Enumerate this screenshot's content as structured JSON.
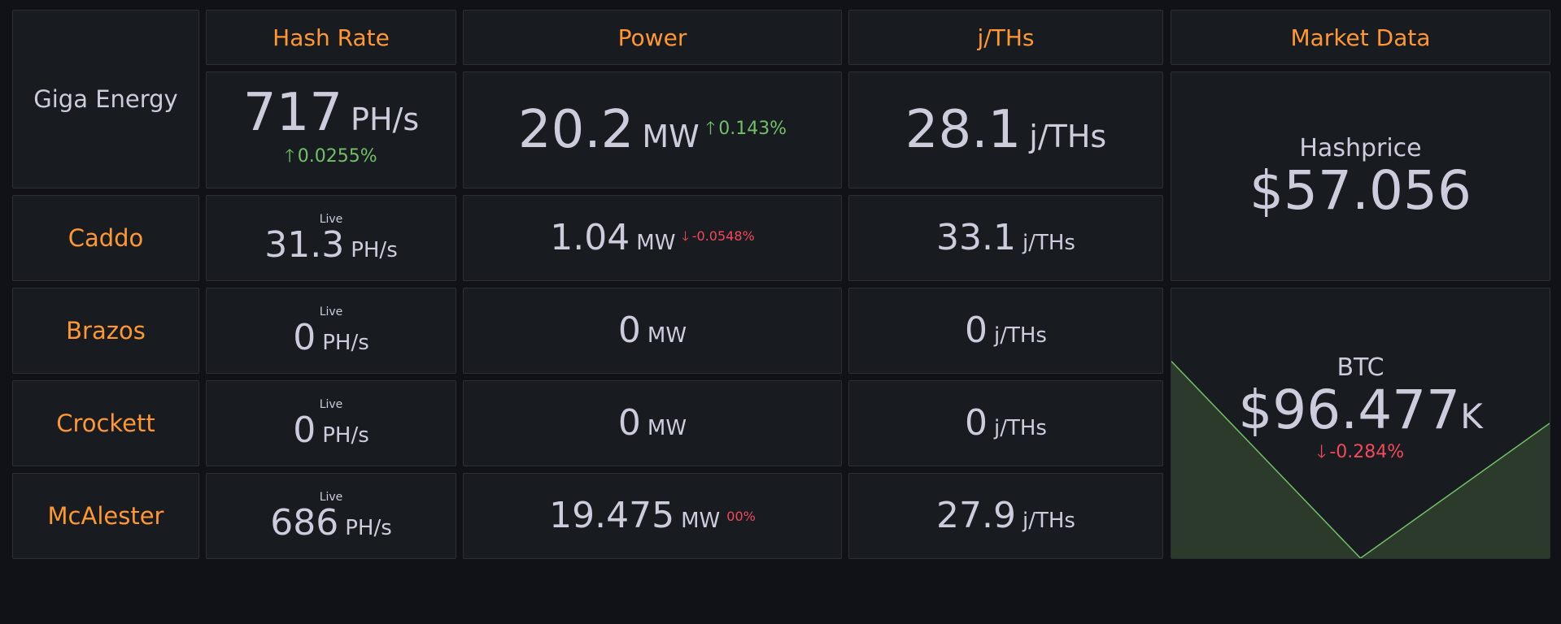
{
  "headers": {
    "hash_rate": "Hash Rate",
    "power": "Power",
    "efficiency": "j/THs",
    "market": "Market Data"
  },
  "total": {
    "name": "Giga Energy",
    "hash_rate": {
      "value": "717",
      "unit": "PH/s",
      "change": "0.0255%",
      "direction": "up"
    },
    "power": {
      "value": "20.2",
      "unit": "MW",
      "change": "0.143%",
      "direction": "up"
    },
    "efficiency": {
      "value": "28.1",
      "unit": "j/THs"
    }
  },
  "sites": [
    {
      "name": "Caddo",
      "live_label": "Live",
      "hash_rate": {
        "value": "31.3",
        "unit": "PH/s"
      },
      "power": {
        "value": "1.04",
        "unit": "MW",
        "change": "-0.0548%",
        "direction": "down"
      },
      "efficiency": {
        "value": "33.1",
        "unit": "j/THs"
      }
    },
    {
      "name": "Brazos",
      "live_label": "Live",
      "hash_rate": {
        "value": "0",
        "unit": "PH/s"
      },
      "power": {
        "value": "0",
        "unit": "MW"
      },
      "efficiency": {
        "value": "0",
        "unit": "j/THs"
      }
    },
    {
      "name": "Crockett",
      "live_label": "Live",
      "hash_rate": {
        "value": "0",
        "unit": "PH/s"
      },
      "power": {
        "value": "0",
        "unit": "MW"
      },
      "efficiency": {
        "value": "0",
        "unit": "j/THs"
      }
    },
    {
      "name": "McAlester",
      "live_label": "Live",
      "hash_rate": {
        "value": "686",
        "unit": "PH/s"
      },
      "power": {
        "value": "19.475",
        "unit": "MW",
        "change": "00%",
        "direction": "down"
      },
      "efficiency": {
        "value": "27.9",
        "unit": "j/THs"
      }
    }
  ],
  "market": {
    "hashprice": {
      "label": "Hashprice",
      "value": "$57.056"
    },
    "btc": {
      "label": "BTC",
      "value": "$96.477",
      "suffix": "K",
      "change": "-0.284%",
      "direction": "down",
      "sparkline": [
        0.73,
        0.0,
        0.5
      ]
    }
  },
  "colors": {
    "accent_orange": "#ff9830",
    "up_green": "#73bf69",
    "down_red": "#f2495c",
    "panel_bg": "#181b1f",
    "page_bg": "#111217",
    "spark_line": "#73bf69",
    "spark_fill": "#2b3a2a"
  }
}
